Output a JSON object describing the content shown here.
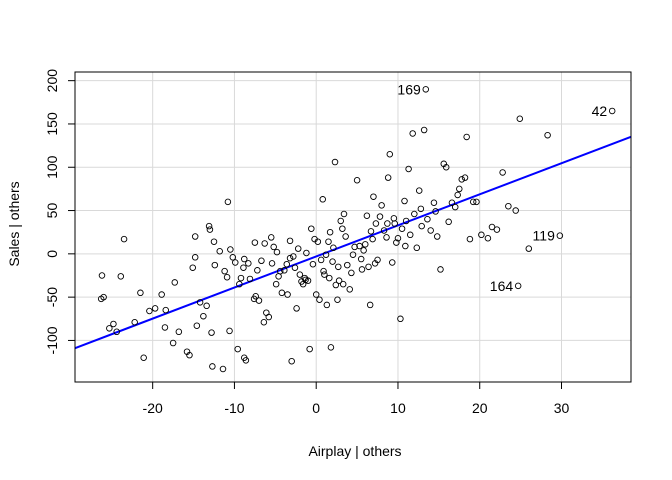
{
  "chart_data": {
    "type": "scatter",
    "title": "",
    "xlabel": "Airplay | others",
    "ylabel": "Sales | others",
    "xlim": [
      -29.5,
      38.5
    ],
    "ylim": [
      -148,
      210
    ],
    "xticks": [
      -20,
      -10,
      0,
      10,
      20,
      30
    ],
    "yticks": [
      -100,
      -50,
      0,
      50,
      100,
      150,
      200
    ],
    "grid": true,
    "point_color": "#000000",
    "line_color": "#0000ff",
    "grid_color": "#d9d9d9",
    "regression_line": {
      "slope": 3.59,
      "intercept": -3.0
    },
    "labeled_points": [
      {
        "label": "169",
        "x": 13.4,
        "y": 190
      },
      {
        "label": "42",
        "x": 36.2,
        "y": 165
      },
      {
        "label": "119",
        "x": 29.8,
        "y": 21
      },
      {
        "label": "164",
        "x": 24.7,
        "y": -37
      }
    ],
    "points": [
      [
        -26.3,
        -52
      ],
      [
        -26.2,
        -25
      ],
      [
        -26.0,
        -50
      ],
      [
        -25.3,
        -86
      ],
      [
        -24.8,
        -81
      ],
      [
        -24.4,
        -90
      ],
      [
        -23.9,
        -26
      ],
      [
        -23.5,
        17
      ],
      [
        -22.2,
        -79
      ],
      [
        -21.5,
        -45
      ],
      [
        -21.1,
        -120
      ],
      [
        -20.4,
        -66
      ],
      [
        -19.7,
        -63
      ],
      [
        -18.9,
        -47
      ],
      [
        -18.5,
        -85
      ],
      [
        -18.4,
        -65
      ],
      [
        -17.5,
        -103
      ],
      [
        -17.3,
        -33
      ],
      [
        -16.8,
        -90
      ],
      [
        -15.8,
        -113
      ],
      [
        -15.5,
        -117
      ],
      [
        -15.1,
        -16
      ],
      [
        -14.8,
        -4
      ],
      [
        -14.8,
        20
      ],
      [
        -14.6,
        -83
      ],
      [
        -14.2,
        -56
      ],
      [
        -13.8,
        -72
      ],
      [
        -13.4,
        -60
      ],
      [
        -13.1,
        32
      ],
      [
        -13.0,
        28
      ],
      [
        -12.8,
        -91
      ],
      [
        -12.7,
        -130
      ],
      [
        -12.4,
        -13
      ],
      [
        -11.8,
        3
      ],
      [
        -11.4,
        -133
      ],
      [
        -11.2,
        -20
      ],
      [
        -10.9,
        -27
      ],
      [
        -10.8,
        60
      ],
      [
        -10.6,
        -89
      ],
      [
        -10.5,
        5
      ],
      [
        -10.2,
        -4
      ],
      [
        -9.6,
        -110
      ],
      [
        -9.4,
        -35
      ],
      [
        -9.2,
        -28
      ],
      [
        -8.8,
        -120
      ],
      [
        -8.8,
        -6
      ],
      [
        -8.6,
        -123
      ],
      [
        -8.3,
        -11
      ],
      [
        -8.1,
        -29
      ],
      [
        -7.5,
        13
      ],
      [
        -7.4,
        -49
      ],
      [
        -7.2,
        -19
      ],
      [
        -7.0,
        -54
      ],
      [
        -6.7,
        -8
      ],
      [
        -6.4,
        -79
      ],
      [
        -6.3,
        12
      ],
      [
        -6.1,
        -68
      ],
      [
        -5.8,
        -73
      ],
      [
        -5.5,
        19
      ],
      [
        -5.4,
        -11
      ],
      [
        -5.2,
        8
      ],
      [
        -4.8,
        2
      ],
      [
        -4.6,
        -26
      ],
      [
        -4.4,
        -20
      ],
      [
        -3.9,
        -19
      ],
      [
        -3.6,
        -12
      ],
      [
        -3.5,
        -47
      ],
      [
        -3.2,
        15
      ],
      [
        -3.2,
        -5
      ],
      [
        -3.0,
        -124
      ],
      [
        -2.8,
        -3
      ],
      [
        -2.6,
        -16
      ],
      [
        -2.4,
        -63
      ],
      [
        -2.2,
        6
      ],
      [
        -2.0,
        -24
      ],
      [
        -1.8,
        -32
      ],
      [
        -1.6,
        -35
      ],
      [
        -1.4,
        -28
      ],
      [
        -1.2,
        1
      ],
      [
        -1.0,
        -31
      ],
      [
        -0.8,
        -110
      ],
      [
        -0.6,
        29
      ],
      [
        -0.4,
        -12
      ],
      [
        -0.2,
        17
      ],
      [
        0.0,
        -47
      ],
      [
        0.2,
        14
      ],
      [
        0.4,
        -53
      ],
      [
        0.6,
        -7
      ],
      [
        0.8,
        63
      ],
      [
        1.0,
        -24
      ],
      [
        1.2,
        -1
      ],
      [
        1.3,
        -59
      ],
      [
        1.5,
        14
      ],
      [
        1.7,
        25
      ],
      [
        1.8,
        -108
      ],
      [
        2.0,
        -9
      ],
      [
        2.1,
        7
      ],
      [
        2.3,
        106
      ],
      [
        2.4,
        -36
      ],
      [
        2.6,
        -53
      ],
      [
        2.8,
        -31
      ],
      [
        3.0,
        38
      ],
      [
        3.2,
        29
      ],
      [
        3.4,
        46
      ],
      [
        3.6,
        20
      ],
      [
        3.8,
        -13
      ],
      [
        4.1,
        -41
      ],
      [
        4.3,
        -22
      ],
      [
        4.5,
        -1
      ],
      [
        4.7,
        8
      ],
      [
        5.0,
        85
      ],
      [
        5.3,
        9
      ],
      [
        5.5,
        -6
      ],
      [
        5.8,
        4
      ],
      [
        6.0,
        11
      ],
      [
        6.2,
        44
      ],
      [
        6.4,
        -15
      ],
      [
        6.6,
        -59
      ],
      [
        6.9,
        17
      ],
      [
        7.0,
        66
      ],
      [
        7.2,
        -11
      ],
      [
        7.5,
        -7
      ],
      [
        7.8,
        43
      ],
      [
        8.0,
        56
      ],
      [
        8.3,
        27
      ],
      [
        8.6,
        19
      ],
      [
        8.8,
        88
      ],
      [
        9.0,
        115
      ],
      [
        9.3,
        -10
      ],
      [
        9.5,
        41
      ],
      [
        9.8,
        13
      ],
      [
        10.0,
        18
      ],
      [
        10.3,
        -75
      ],
      [
        10.5,
        29
      ],
      [
        10.8,
        61
      ],
      [
        11.0,
        38
      ],
      [
        11.3,
        98
      ],
      [
        11.5,
        22
      ],
      [
        11.8,
        139
      ],
      [
        12.0,
        46
      ],
      [
        12.3,
        7
      ],
      [
        12.6,
        73
      ],
      [
        12.9,
        32
      ],
      [
        13.2,
        143
      ],
      [
        13.6,
        40
      ],
      [
        14.0,
        27
      ],
      [
        14.4,
        59
      ],
      [
        14.8,
        20
      ],
      [
        15.2,
        -18
      ],
      [
        15.6,
        104
      ],
      [
        15.9,
        100
      ],
      [
        16.2,
        37
      ],
      [
        16.6,
        59
      ],
      [
        17.0,
        54
      ],
      [
        17.3,
        68
      ],
      [
        17.8,
        86
      ],
      [
        18.2,
        88
      ],
      [
        18.4,
        135
      ],
      [
        18.8,
        17
      ],
      [
        19.2,
        60
      ],
      [
        19.6,
        60
      ],
      [
        20.2,
        22
      ],
      [
        21.0,
        18
      ],
      [
        21.5,
        31
      ],
      [
        22.1,
        28
      ],
      [
        22.8,
        94
      ],
      [
        23.5,
        55
      ],
      [
        24.4,
        50
      ],
      [
        24.9,
        156
      ],
      [
        24.7,
        -37
      ],
      [
        26.0,
        6
      ],
      [
        28.3,
        137
      ],
      [
        29.8,
        21
      ],
      [
        36.2,
        165
      ],
      [
        13.4,
        190
      ],
      [
        -12.5,
        14
      ],
      [
        -9.9,
        -10
      ],
      [
        -8.9,
        -16
      ],
      [
        -7.6,
        -52
      ],
      [
        -4.9,
        -35
      ],
      [
        -4.2,
        -45
      ],
      [
        -1.3,
        -30
      ],
      [
        0.9,
        -20
      ],
      [
        1.6,
        -28
      ],
      [
        2.7,
        -15
      ],
      [
        3.3,
        -35
      ],
      [
        5.6,
        -18
      ],
      [
        6.7,
        26
      ],
      [
        7.3,
        35
      ],
      [
        8.7,
        35
      ],
      [
        9.6,
        35
      ],
      [
        10.9,
        9
      ],
      [
        12.8,
        52
      ],
      [
        14.6,
        49
      ],
      [
        17.5,
        75
      ]
    ]
  }
}
